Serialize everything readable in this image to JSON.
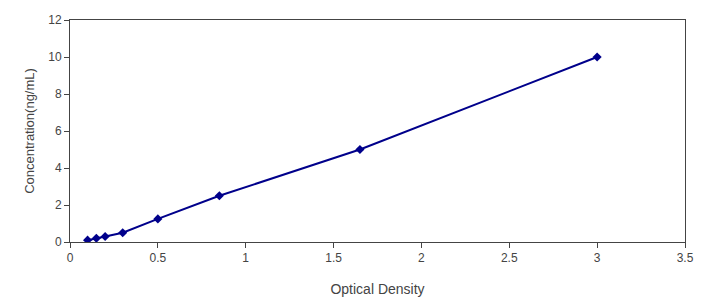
{
  "chart_data": {
    "type": "line",
    "x": [
      0.1,
      0.15,
      0.2,
      0.3,
      0.5,
      0.85,
      1.65,
      3.0
    ],
    "values": [
      0.1,
      0.2,
      0.3,
      0.5,
      1.25,
      2.5,
      5.0,
      10.0
    ],
    "color": "#00008B",
    "marker": "diamond",
    "line_style": "solid",
    "xlabel": "Optical Density",
    "ylabel": "Concentration(ng/mL)",
    "xlim": [
      0,
      3.5
    ],
    "ylim": [
      0,
      12
    ],
    "xticks": [
      0,
      0.5,
      1,
      1.5,
      2,
      2.5,
      3,
      3.5
    ],
    "yticks": [
      0,
      2,
      4,
      6,
      8,
      10,
      12
    ],
    "grid": false
  }
}
